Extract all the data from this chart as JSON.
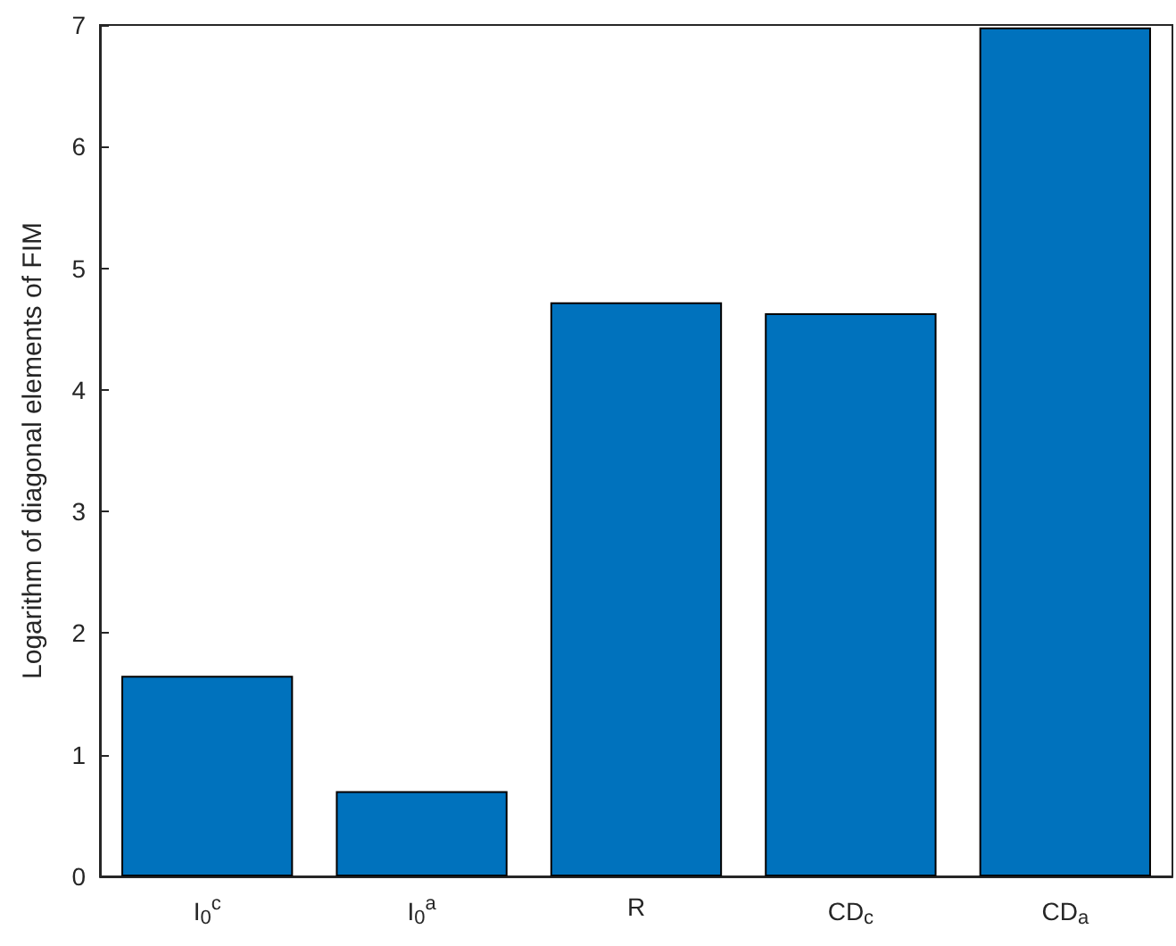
{
  "chart_data": {
    "type": "bar",
    "ylabel": "Logarithm of diagonal elements of FIM",
    "categories": [
      "I$_{0}$$^{c}$",
      "I$_{0}$$^{a}$",
      "R",
      "CD$_{c}$",
      "CD$_{a}$"
    ],
    "values": [
      1.65,
      0.7,
      4.72,
      4.63,
      6.98
    ],
    "color": "#0072bd",
    "ylim": [
      0,
      7
    ],
    "yticks": [
      0,
      1,
      2,
      3,
      4,
      5,
      6,
      7
    ],
    "grid": false
  }
}
